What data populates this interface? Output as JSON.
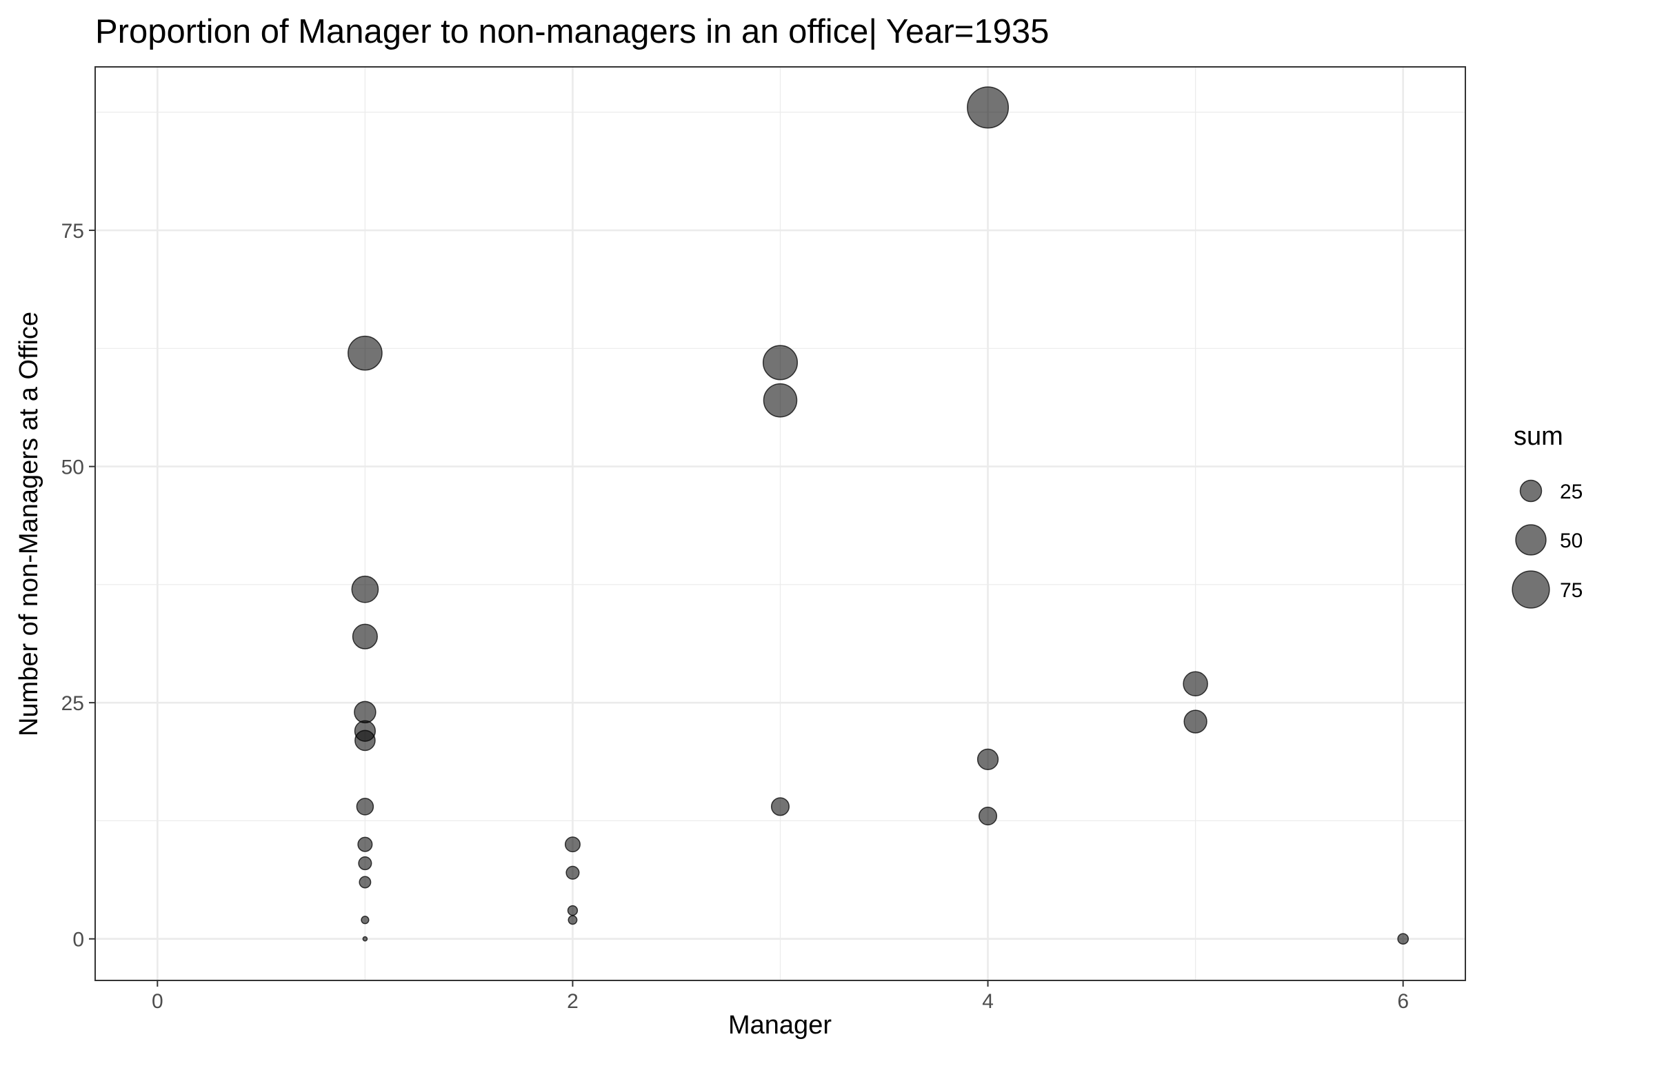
{
  "chart_data": {
    "type": "scatter",
    "title": "Proportion of Manager to non-managers in an office| Year=1935",
    "xlabel": "Manager",
    "ylabel": "Number of non-Managers at a Office",
    "xlim": [
      -0.3,
      6.3
    ],
    "ylim": [
      -4.4,
      92.3
    ],
    "x_ticks": [
      0,
      2,
      4,
      6
    ],
    "y_ticks": [
      0,
      25,
      50,
      75
    ],
    "grid": true,
    "point_color": "#000000",
    "point_opacity": 0.55,
    "size_legend": {
      "title": "sum",
      "position": "right",
      "entries": [
        {
          "label": "25",
          "value": 25
        },
        {
          "label": "50",
          "value": 50
        },
        {
          "label": "75",
          "value": 75
        }
      ]
    },
    "points": [
      {
        "x": 1,
        "y": 62,
        "size": 63
      },
      {
        "x": 1,
        "y": 37,
        "size": 38
      },
      {
        "x": 1,
        "y": 32,
        "size": 33
      },
      {
        "x": 1,
        "y": 24,
        "size": 25
      },
      {
        "x": 1,
        "y": 22,
        "size": 23
      },
      {
        "x": 1,
        "y": 21,
        "size": 22
      },
      {
        "x": 1,
        "y": 14,
        "size": 15
      },
      {
        "x": 1,
        "y": 10,
        "size": 11
      },
      {
        "x": 1,
        "y": 8,
        "size": 9
      },
      {
        "x": 1,
        "y": 6,
        "size": 7
      },
      {
        "x": 1,
        "y": 2,
        "size": 3
      },
      {
        "x": 1,
        "y": 0,
        "size": 1
      },
      {
        "x": 2,
        "y": 10,
        "size": 12
      },
      {
        "x": 2,
        "y": 7,
        "size": 9
      },
      {
        "x": 2,
        "y": 3,
        "size": 5
      },
      {
        "x": 2,
        "y": 2,
        "size": 4
      },
      {
        "x": 3,
        "y": 61,
        "size": 64
      },
      {
        "x": 3,
        "y": 57,
        "size": 60
      },
      {
        "x": 3,
        "y": 14,
        "size": 17
      },
      {
        "x": 4,
        "y": 88,
        "size": 92
      },
      {
        "x": 4,
        "y": 19,
        "size": 23
      },
      {
        "x": 4,
        "y": 13,
        "size": 17
      },
      {
        "x": 5,
        "y": 27,
        "size": 32
      },
      {
        "x": 5,
        "y": 23,
        "size": 28
      },
      {
        "x": 6,
        "y": 0,
        "size": 6
      }
    ]
  }
}
